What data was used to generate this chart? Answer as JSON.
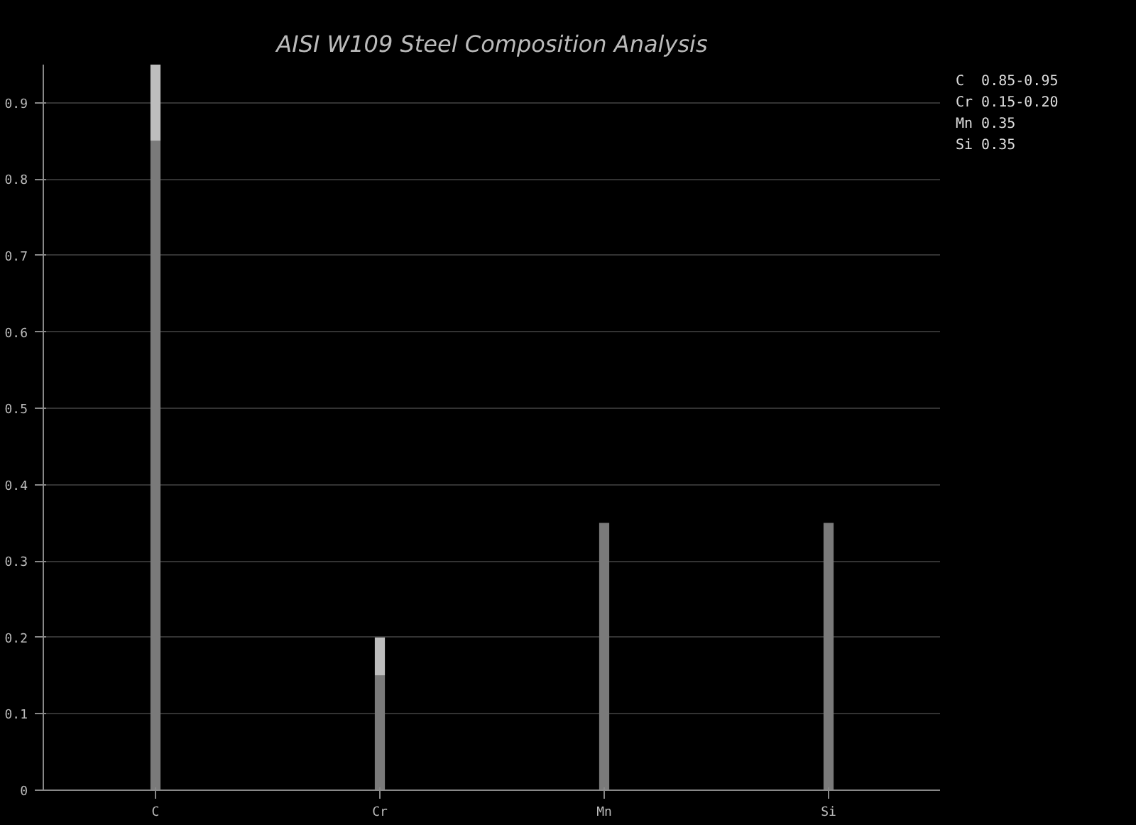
{
  "chart_data": {
    "type": "bar",
    "title": "AISI W109 Steel Composition Analysis",
    "categories": [
      "C",
      "Cr",
      "Mn",
      "Si"
    ],
    "stacked": true,
    "series": [
      {
        "color": "#7a7a7a",
        "values": [
          0.85,
          0.15,
          0.35,
          0.35
        ]
      },
      {
        "color": "#bdbdbd",
        "values": [
          0.1,
          0.05,
          0,
          0
        ]
      }
    ],
    "ylim": [
      0,
      0.95
    ],
    "yticks": [
      0,
      0.1,
      0.2,
      0.3,
      0.4,
      0.5,
      0.6,
      0.7,
      0.8,
      0.9
    ],
    "grid": "y",
    "annotations": [
      "C  0.85-0.95",
      "Cr 0.15-0.20",
      "Mn 0.35",
      "Si 0.35"
    ]
  }
}
